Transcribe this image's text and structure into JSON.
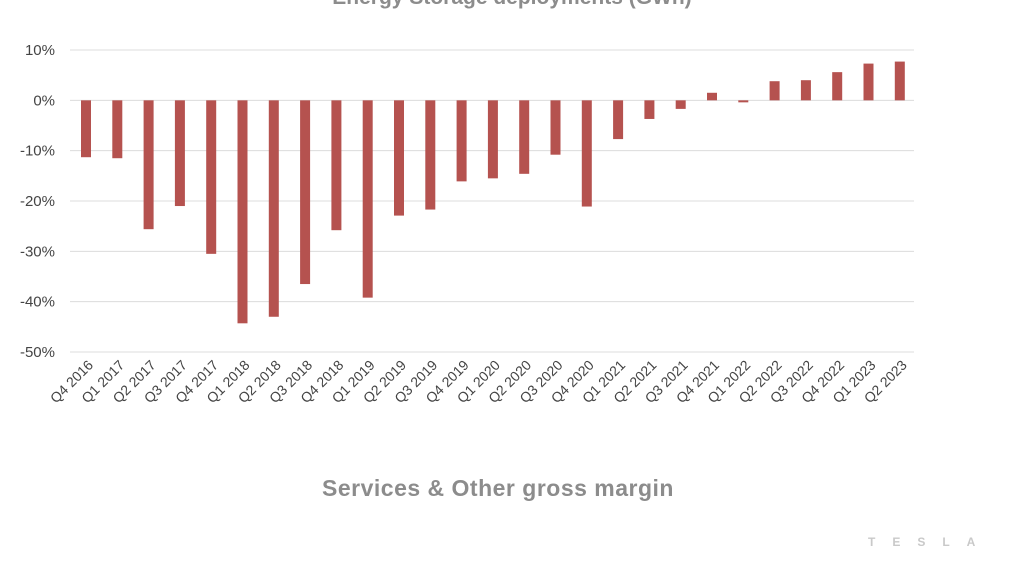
{
  "chart_data": {
    "type": "bar",
    "title": "Energy Storage deployments (GWh)",
    "subtitle": "Services & Other gross margin",
    "xlabel": "",
    "ylabel": "",
    "ylim": [
      -50,
      10
    ],
    "yticks": [
      10,
      0,
      -10,
      -20,
      -30,
      -40,
      -50
    ],
    "ytick_labels": [
      "10%",
      "0%",
      "-10%",
      "-20%",
      "-30%",
      "-40%",
      "-50%"
    ],
    "grid": true,
    "bar_color": "#b5524f",
    "categories": [
      "Q4 2016",
      "Q1 2017",
      "Q2 2017",
      "Q3 2017",
      "Q4 2017",
      "Q1 2018",
      "Q2 2018",
      "Q3 2018",
      "Q4 2018",
      "Q1 2019",
      "Q2 2019",
      "Q3 2019",
      "Q4 2019",
      "Q1 2020",
      "Q2 2020",
      "Q3 2020",
      "Q4 2020",
      "Q1 2021",
      "Q2 2021",
      "Q3 2021",
      "Q4 2021",
      "Q1 2022",
      "Q2 2022",
      "Q3 2022",
      "Q4 2022",
      "Q1 2023",
      "Q2 2023"
    ],
    "values": [
      -11.3,
      -11.5,
      -25.6,
      -21.0,
      -30.5,
      -44.3,
      -43.0,
      -36.5,
      -25.8,
      -39.2,
      -22.9,
      -21.7,
      -16.1,
      -15.5,
      -14.6,
      -10.8,
      -21.1,
      -7.7,
      -3.7,
      -1.7,
      1.5,
      -0.4,
      3.8,
      4.0,
      5.6,
      7.3,
      7.7
    ]
  },
  "branding": {
    "logo_text": "TESLA"
  },
  "colors": {
    "gridline": "#dcdcdc",
    "title": "#8c8c8c",
    "tick": "#444444"
  }
}
